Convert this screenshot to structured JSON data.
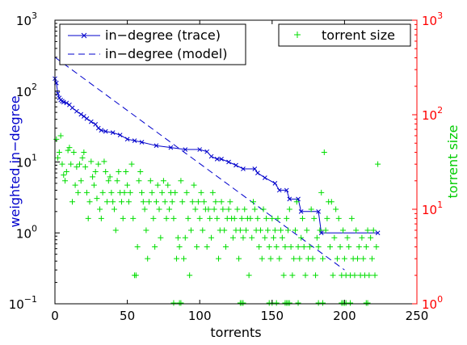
{
  "chart_data": {
    "type": "scatter",
    "xlabel": "torrents",
    "ylabel_left": "weighted in−degree",
    "ylabel_right": "torrent size",
    "xlim": [
      0,
      250
    ],
    "x_ticks": [
      0,
      50,
      100,
      150,
      200,
      250
    ],
    "x_tick_labels": [
      "0",
      "50",
      "100",
      "150",
      "200",
      "250"
    ],
    "ylim_left": [
      0.1,
      1000
    ],
    "ylim_right": [
      1,
      1000
    ],
    "y_scale": "log",
    "left_ticks": [
      {
        "base": "10",
        "exp": "−1",
        "value": 0.1
      },
      {
        "base": "10",
        "exp": "0",
        "value": 1
      },
      {
        "base": "10",
        "exp": "1",
        "value": 10
      },
      {
        "base": "10",
        "exp": "2",
        "value": 100
      },
      {
        "base": "10",
        "exp": "3",
        "value": 1000
      }
    ],
    "right_ticks": [
      {
        "base": "10",
        "exp": "0",
        "value": 1
      },
      {
        "base": "10",
        "exp": "1",
        "value": 10
      },
      {
        "base": "10",
        "exp": "2",
        "value": 100
      },
      {
        "base": "10",
        "exp": "3",
        "value": 1000
      }
    ],
    "grid": false,
    "legend_left": {
      "placement": "top-left",
      "entries": [
        "in−degree (trace)",
        "in−degree (model)"
      ]
    },
    "legend_right": {
      "placement": "top-right",
      "entries": [
        "torrent size"
      ]
    },
    "colors": {
      "trace": "#0000cc",
      "model": "#0000cc",
      "torrent_size": "#00dd00",
      "left_axis_label": "#0000cc",
      "right_axis": "#ff0000",
      "right_axis_label": "#00cc00"
    },
    "series": [
      {
        "name": "in−degree (trace)",
        "axis": "left",
        "style": "line-with-x-markers",
        "points": [
          [
            0,
            150
          ],
          [
            1,
            130
          ],
          [
            2,
            92
          ],
          [
            3,
            80
          ],
          [
            4,
            75
          ],
          [
            5,
            72
          ],
          [
            6,
            70
          ],
          [
            8,
            68
          ],
          [
            10,
            64
          ],
          [
            12,
            58
          ],
          [
            15,
            52
          ],
          [
            18,
            47
          ],
          [
            20,
            44
          ],
          [
            22,
            41
          ],
          [
            25,
            37
          ],
          [
            28,
            34
          ],
          [
            30,
            30
          ],
          [
            32,
            28
          ],
          [
            35,
            27
          ],
          [
            40,
            26
          ],
          [
            45,
            24
          ],
          [
            50,
            21
          ],
          [
            55,
            20
          ],
          [
            60,
            19
          ],
          [
            70,
            17
          ],
          [
            80,
            16
          ],
          [
            90,
            15
          ],
          [
            100,
            15
          ],
          [
            105,
            14
          ],
          [
            108,
            12
          ],
          [
            112,
            11
          ],
          [
            115,
            11
          ],
          [
            120,
            10
          ],
          [
            125,
            9
          ],
          [
            130,
            8
          ],
          [
            138,
            8
          ],
          [
            140,
            7
          ],
          [
            145,
            6
          ],
          [
            152,
            5
          ],
          [
            155,
            4
          ],
          [
            160,
            4
          ],
          [
            162,
            3
          ],
          [
            168,
            3
          ],
          [
            170,
            2
          ],
          [
            182,
            2
          ],
          [
            184,
            1
          ],
          [
            223,
            1
          ]
        ]
      },
      {
        "name": "in−degree (model)",
        "axis": "left",
        "style": "dashed",
        "points": [
          [
            0,
            300
          ],
          [
            200,
            0.3
          ]
        ]
      },
      {
        "name": "torrent size",
        "axis": "right",
        "style": "plus-markers",
        "points": [
          [
            1,
            55
          ],
          [
            2,
            35
          ],
          [
            3,
            40
          ],
          [
            4,
            60
          ],
          [
            5,
            30
          ],
          [
            6,
            23
          ],
          [
            7,
            20
          ],
          [
            8,
            25
          ],
          [
            9,
            42
          ],
          [
            10,
            45
          ],
          [
            11,
            30
          ],
          [
            12,
            12
          ],
          [
            13,
            40
          ],
          [
            14,
            18
          ],
          [
            15,
            28
          ],
          [
            16,
            15
          ],
          [
            17,
            30
          ],
          [
            18,
            20
          ],
          [
            19,
            35
          ],
          [
            20,
            40
          ],
          [
            21,
            28
          ],
          [
            22,
            15
          ],
          [
            23,
            8
          ],
          [
            24,
            12
          ],
          [
            25,
            32
          ],
          [
            26,
            22
          ],
          [
            27,
            18
          ],
          [
            28,
            25
          ],
          [
            29,
            13
          ],
          [
            30,
            30
          ],
          [
            31,
            10
          ],
          [
            32,
            8
          ],
          [
            33,
            15
          ],
          [
            34,
            32
          ],
          [
            35,
            25
          ],
          [
            36,
            12
          ],
          [
            37,
            20
          ],
          [
            38,
            22
          ],
          [
            39,
            15
          ],
          [
            40,
            12
          ],
          [
            41,
            10
          ],
          [
            42,
            6
          ],
          [
            43,
            20
          ],
          [
            44,
            25
          ],
          [
            45,
            15
          ],
          [
            46,
            12
          ],
          [
            47,
            8
          ],
          [
            48,
            15
          ],
          [
            49,
            25
          ],
          [
            50,
            18
          ],
          [
            51,
            12
          ],
          [
            52,
            15
          ],
          [
            53,
            30
          ],
          [
            54,
            8
          ],
          [
            55,
            2
          ],
          [
            56,
            2
          ],
          [
            57,
            4
          ],
          [
            58,
            20
          ],
          [
            59,
            25
          ],
          [
            60,
            15
          ],
          [
            61,
            12
          ],
          [
            62,
            10
          ],
          [
            63,
            6
          ],
          [
            64,
            3
          ],
          [
            65,
            12
          ],
          [
            66,
            20
          ],
          [
            67,
            15
          ],
          [
            68,
            8
          ],
          [
            69,
            4
          ],
          [
            70,
            12
          ],
          [
            71,
            18
          ],
          [
            72,
            10
          ],
          [
            73,
            5
          ],
          [
            74,
            15
          ],
          [
            75,
            20
          ],
          [
            76,
            12
          ],
          [
            77,
            8
          ],
          [
            78,
            18
          ],
          [
            79,
            10
          ],
          [
            80,
            15
          ],
          [
            81,
            12
          ],
          [
            82,
            8
          ],
          [
            83,
            15
          ],
          [
            84,
            3
          ],
          [
            85,
            5
          ],
          [
            86,
            4
          ],
          [
            87,
            20
          ],
          [
            88,
            12
          ],
          [
            89,
            3
          ],
          [
            90,
            5
          ],
          [
            91,
            15
          ],
          [
            92,
            8
          ],
          [
            93,
            2
          ],
          [
            94,
            6
          ],
          [
            95,
            12
          ],
          [
            96,
            18
          ],
          [
            97,
            10
          ],
          [
            98,
            4
          ],
          [
            99,
            12
          ],
          [
            100,
            8
          ],
          [
            101,
            15
          ],
          [
            102,
            6
          ],
          [
            103,
            12
          ],
          [
            104,
            10
          ],
          [
            105,
            4
          ],
          [
            106,
            10
          ],
          [
            107,
            8
          ],
          [
            108,
            5
          ],
          [
            109,
            15
          ],
          [
            110,
            10
          ],
          [
            111,
            12
          ],
          [
            112,
            8
          ],
          [
            113,
            3
          ],
          [
            114,
            6
          ],
          [
            115,
            12
          ],
          [
            116,
            10
          ],
          [
            117,
            6
          ],
          [
            118,
            4
          ],
          [
            119,
            8
          ],
          [
            120,
            10
          ],
          [
            121,
            12
          ],
          [
            122,
            8
          ],
          [
            123,
            5
          ],
          [
            124,
            8
          ],
          [
            125,
            6
          ],
          [
            126,
            10
          ],
          [
            127,
            3
          ],
          [
            128,
            6
          ],
          [
            129,
            8
          ],
          [
            130,
            5
          ],
          [
            131,
            10
          ],
          [
            132,
            6
          ],
          [
            133,
            8
          ],
          [
            134,
            2
          ],
          [
            135,
            8
          ],
          [
            136,
            5
          ],
          [
            137,
            12
          ],
          [
            138,
            10
          ],
          [
            139,
            6
          ],
          [
            140,
            8
          ],
          [
            141,
            4
          ],
          [
            142,
            6
          ],
          [
            143,
            3
          ],
          [
            144,
            10
          ],
          [
            145,
            5
          ],
          [
            146,
            8
          ],
          [
            147,
            6
          ],
          [
            148,
            4
          ],
          [
            149,
            3
          ],
          [
            150,
            8
          ],
          [
            151,
            5
          ],
          [
            152,
            6
          ],
          [
            153,
            4
          ],
          [
            154,
            8
          ],
          [
            155,
            3
          ],
          [
            156,
            6
          ],
          [
            157,
            5
          ],
          [
            158,
            2
          ],
          [
            159,
            4
          ],
          [
            160,
            8
          ],
          [
            161,
            6
          ],
          [
            162,
            10
          ],
          [
            163,
            4
          ],
          [
            164,
            2
          ],
          [
            165,
            3
          ],
          [
            166,
            6
          ],
          [
            167,
            12
          ],
          [
            168,
            4
          ],
          [
            169,
            3
          ],
          [
            170,
            5
          ],
          [
            171,
            8
          ],
          [
            172,
            4
          ],
          [
            173,
            2
          ],
          [
            174,
            6
          ],
          [
            175,
            3
          ],
          [
            176,
            4
          ],
          [
            177,
            10
          ],
          [
            178,
            3
          ],
          [
            179,
            8
          ],
          [
            180,
            2
          ],
          [
            181,
            5
          ],
          [
            182,
            4
          ],
          [
            183,
            6
          ],
          [
            184,
            15
          ],
          [
            185,
            3
          ],
          [
            186,
            40
          ],
          [
            187,
            6
          ],
          [
            188,
            8
          ],
          [
            189,
            12
          ],
          [
            190,
            4
          ],
          [
            191,
            12
          ],
          [
            192,
            2
          ],
          [
            193,
            5
          ],
          [
            194,
            10
          ],
          [
            195,
            3
          ],
          [
            196,
            8
          ],
          [
            197,
            4
          ],
          [
            198,
            2
          ],
          [
            199,
            6
          ],
          [
            200,
            3
          ],
          [
            201,
            2
          ],
          [
            202,
            5
          ],
          [
            203,
            4
          ],
          [
            204,
            2
          ],
          [
            205,
            8
          ],
          [
            206,
            3
          ],
          [
            207,
            2
          ],
          [
            208,
            6
          ],
          [
            209,
            3
          ],
          [
            210,
            4
          ],
          [
            211,
            2
          ],
          [
            212,
            5
          ],
          [
            213,
            3
          ],
          [
            214,
            2
          ],
          [
            215,
            4
          ],
          [
            216,
            6
          ],
          [
            217,
            2
          ],
          [
            218,
            5
          ],
          [
            219,
            3
          ],
          [
            220,
            6
          ],
          [
            221,
            2
          ],
          [
            222,
            4
          ],
          [
            223,
            30
          ]
        ]
      },
      {
        "name": "torrent size (floor markers)",
        "axis": "right",
        "style": "plus-markers",
        "points": [
          [
            82,
            1
          ],
          [
            86,
            1
          ],
          [
            87,
            1
          ],
          [
            128,
            1
          ],
          [
            129,
            1
          ],
          [
            130,
            1
          ],
          [
            148,
            1
          ],
          [
            150,
            1
          ],
          [
            153,
            1
          ],
          [
            159,
            1
          ],
          [
            160,
            1
          ],
          [
            161,
            1
          ],
          [
            162,
            1
          ],
          [
            168,
            1
          ],
          [
            182,
            1
          ],
          [
            185,
            1
          ],
          [
            198,
            1
          ],
          [
            199,
            1
          ],
          [
            200,
            1
          ],
          [
            201,
            1
          ],
          [
            204,
            1
          ],
          [
            215,
            1
          ],
          [
            216,
            1
          ]
        ]
      }
    ]
  }
}
